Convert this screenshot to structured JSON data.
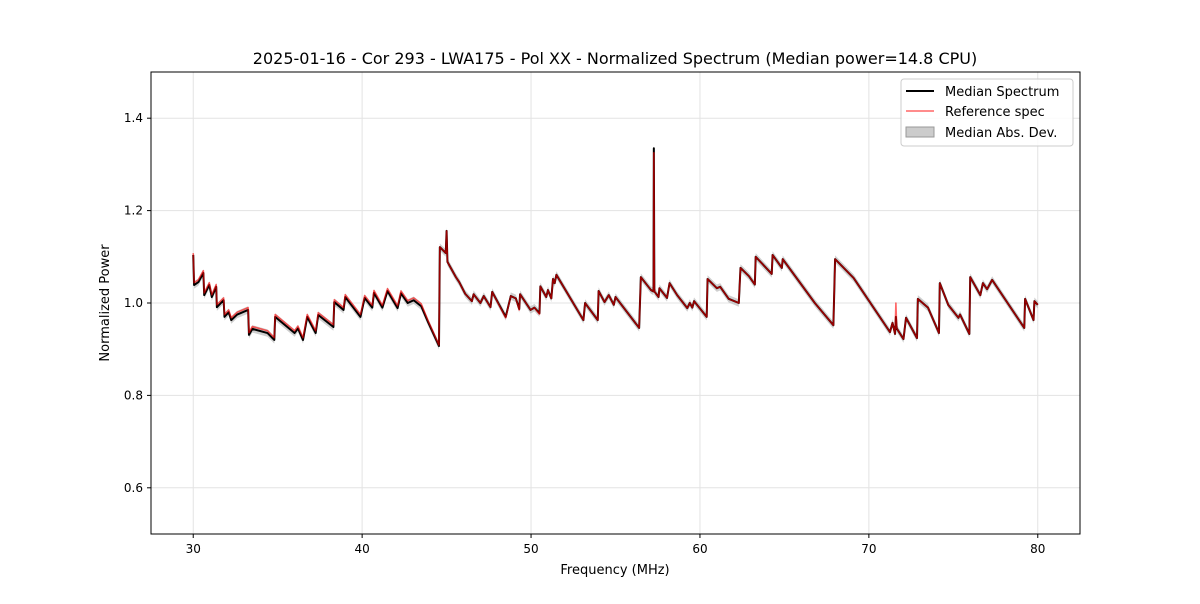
{
  "chart_data": {
    "type": "line",
    "title": "2025-01-16 - Cor 293 - LWA175 - Pol XX - Normalized Spectrum (Median power=14.8 CPU)",
    "xlabel": "Frequency (MHz)",
    "ylabel": "Normalized Power",
    "xlim": [
      27.5,
      82.5
    ],
    "ylim": [
      0.5,
      1.5
    ],
    "xticks": [
      "30",
      "40",
      "50",
      "60",
      "70",
      "80"
    ],
    "yticks": [
      "0.6",
      "0.8",
      "1.0",
      "1.2",
      "1.4"
    ],
    "grid": true,
    "legend_position": "top-right",
    "legend": [
      "Median Spectrum",
      "Reference spec",
      "Median Abs. Dev."
    ],
    "colors": {
      "median": "#000000",
      "reference": "#ff0000",
      "mad": "#bbbbbb"
    },
    "mad_halfwidth": 0.008,
    "columns": [
      "frequency_mhz",
      "median",
      "reference"
    ],
    "points": [
      [
        30.0,
        1.104,
        1.108
      ],
      [
        30.05,
        1.039,
        1.044
      ],
      [
        30.3,
        1.045,
        1.05
      ],
      [
        30.6,
        1.065,
        1.07
      ],
      [
        30.65,
        1.017,
        1.022
      ],
      [
        30.95,
        1.039,
        1.044
      ],
      [
        31.1,
        1.013,
        1.018
      ],
      [
        31.36,
        1.035,
        1.04
      ],
      [
        31.4,
        0.991,
        0.996
      ],
      [
        31.8,
        1.006,
        1.011
      ],
      [
        31.85,
        0.97,
        0.975
      ],
      [
        32.1,
        0.98,
        0.985
      ],
      [
        32.25,
        0.963,
        0.968
      ],
      [
        32.6,
        0.975,
        0.98
      ],
      [
        33.25,
        0.985,
        0.99
      ],
      [
        33.3,
        0.931,
        0.936
      ],
      [
        33.5,
        0.944,
        0.949
      ],
      [
        34.4,
        0.935,
        0.94
      ],
      [
        34.8,
        0.92,
        0.925
      ],
      [
        34.85,
        0.97,
        0.975
      ],
      [
        36.0,
        0.935,
        0.94
      ],
      [
        36.2,
        0.945,
        0.95
      ],
      [
        36.5,
        0.92,
        0.925
      ],
      [
        36.75,
        0.97,
        0.975
      ],
      [
        37.25,
        0.935,
        0.94
      ],
      [
        37.4,
        0.974,
        0.979
      ],
      [
        38.3,
        0.948,
        0.953
      ],
      [
        38.35,
        1.002,
        1.007
      ],
      [
        38.9,
        0.985,
        0.99
      ],
      [
        39.0,
        1.013,
        1.018
      ],
      [
        39.9,
        0.97,
        0.975
      ],
      [
        40.15,
        1.011,
        1.016
      ],
      [
        40.6,
        0.99,
        0.995
      ],
      [
        40.7,
        1.022,
        1.027
      ],
      [
        41.2,
        0.99,
        0.995
      ],
      [
        41.5,
        1.026,
        1.031
      ],
      [
        42.1,
        0.989,
        0.994
      ],
      [
        42.3,
        1.021,
        1.026
      ],
      [
        42.7,
        1.0,
        1.005
      ],
      [
        43.05,
        1.006,
        1.011
      ],
      [
        43.5,
        0.993,
        0.998
      ],
      [
        43.9,
        0.959,
        0.962
      ],
      [
        44.55,
        0.907,
        0.909
      ],
      [
        44.6,
        1.121,
        1.121
      ],
      [
        44.95,
        1.108,
        1.108
      ],
      [
        45.0,
        1.156,
        1.156
      ],
      [
        45.05,
        1.089,
        1.089
      ],
      [
        45.55,
        1.056,
        1.056
      ],
      [
        45.75,
        1.045,
        1.045
      ],
      [
        46.1,
        1.02,
        1.02
      ],
      [
        46.5,
        1.004,
        1.004
      ],
      [
        46.6,
        1.019,
        1.019
      ],
      [
        47.0,
        1.0,
        1.0
      ],
      [
        47.2,
        1.015,
        1.015
      ],
      [
        47.6,
        0.991,
        0.991
      ],
      [
        47.7,
        1.024,
        1.024
      ],
      [
        48.5,
        0.97,
        0.968
      ],
      [
        48.8,
        1.015,
        1.015
      ],
      [
        49.1,
        1.01,
        1.01
      ],
      [
        49.3,
        0.987,
        0.985
      ],
      [
        49.35,
        1.019,
        1.019
      ],
      [
        49.97,
        0.985,
        0.985
      ],
      [
        50.2,
        0.99,
        0.99
      ],
      [
        50.5,
        0.978,
        0.976
      ],
      [
        50.55,
        1.036,
        1.036
      ],
      [
        50.9,
        1.013,
        1.013
      ],
      [
        51.0,
        1.028,
        1.028
      ],
      [
        51.2,
        1.01,
        1.01
      ],
      [
        51.3,
        1.052,
        1.052
      ],
      [
        51.4,
        1.043,
        1.043
      ],
      [
        51.5,
        1.061,
        1.061
      ],
      [
        53.1,
        0.963,
        0.963
      ],
      [
        53.2,
        1.0,
        1.0
      ],
      [
        53.4,
        0.99,
        0.99
      ],
      [
        53.95,
        0.963,
        0.963
      ],
      [
        54.0,
        1.026,
        1.026
      ],
      [
        54.35,
        1.002,
        1.002
      ],
      [
        54.6,
        1.017,
        1.017
      ],
      [
        54.9,
        0.996,
        0.996
      ],
      [
        55.0,
        1.013,
        1.013
      ],
      [
        56.4,
        0.946,
        0.946
      ],
      [
        56.5,
        1.056,
        1.056
      ],
      [
        57.1,
        1.028,
        1.028
      ],
      [
        57.25,
        1.025,
        1.025
      ],
      [
        57.27,
        1.335,
        1.325
      ],
      [
        57.3,
        1.025,
        1.025
      ],
      [
        57.55,
        1.013,
        1.013
      ],
      [
        57.6,
        1.032,
        1.032
      ],
      [
        58.05,
        1.011,
        1.011
      ],
      [
        58.2,
        1.043,
        1.043
      ],
      [
        58.65,
        1.017,
        1.017
      ],
      [
        59.25,
        0.989,
        0.989
      ],
      [
        59.4,
        1.0,
        1.0
      ],
      [
        59.55,
        0.99,
        0.99
      ],
      [
        59.65,
        1.004,
        1.004
      ],
      [
        60.4,
        0.97,
        0.97
      ],
      [
        60.45,
        1.052,
        1.052
      ],
      [
        61.0,
        1.032,
        1.032
      ],
      [
        61.2,
        1.035,
        1.035
      ],
      [
        61.7,
        1.009,
        1.009
      ],
      [
        62.3,
        1.0,
        1.0
      ],
      [
        62.4,
        1.076,
        1.076
      ],
      [
        62.9,
        1.058,
        1.058
      ],
      [
        63.25,
        1.04,
        1.04
      ],
      [
        63.3,
        1.1,
        1.1
      ],
      [
        64.25,
        1.063,
        1.063
      ],
      [
        64.3,
        1.104,
        1.104
      ],
      [
        64.85,
        1.076,
        1.076
      ],
      [
        64.9,
        1.095,
        1.095
      ],
      [
        66.8,
        1.0,
        1.0
      ],
      [
        67.9,
        0.952,
        0.952
      ],
      [
        68.0,
        1.095,
        1.095
      ],
      [
        69.1,
        1.054,
        1.054
      ],
      [
        71.25,
        0.937,
        0.937
      ],
      [
        71.4,
        0.957,
        0.957
      ],
      [
        71.55,
        0.933,
        0.933
      ],
      [
        71.6,
        0.97,
        1.0
      ],
      [
        71.65,
        0.945,
        0.945
      ],
      [
        72.05,
        0.922,
        0.922
      ],
      [
        72.2,
        0.968,
        0.968
      ],
      [
        72.85,
        0.924,
        0.924
      ],
      [
        72.9,
        1.009,
        1.009
      ],
      [
        73.5,
        0.99,
        0.99
      ],
      [
        74.15,
        0.935,
        0.935
      ],
      [
        74.2,
        1.043,
        1.043
      ],
      [
        74.7,
        0.996,
        0.996
      ],
      [
        75.3,
        0.968,
        0.968
      ],
      [
        75.4,
        0.975,
        0.975
      ],
      [
        75.95,
        0.933,
        0.933
      ],
      [
        76.0,
        1.056,
        1.056
      ],
      [
        76.6,
        1.017,
        1.017
      ],
      [
        76.75,
        1.043,
        1.043
      ],
      [
        77.0,
        1.03,
        1.03
      ],
      [
        77.3,
        1.05,
        1.05
      ],
      [
        79.2,
        0.946,
        0.946
      ],
      [
        79.25,
        1.009,
        1.009
      ],
      [
        79.75,
        0.963,
        0.963
      ],
      [
        79.8,
        1.004,
        1.004
      ],
      [
        80.0,
        0.996,
        0.996
      ]
    ]
  }
}
